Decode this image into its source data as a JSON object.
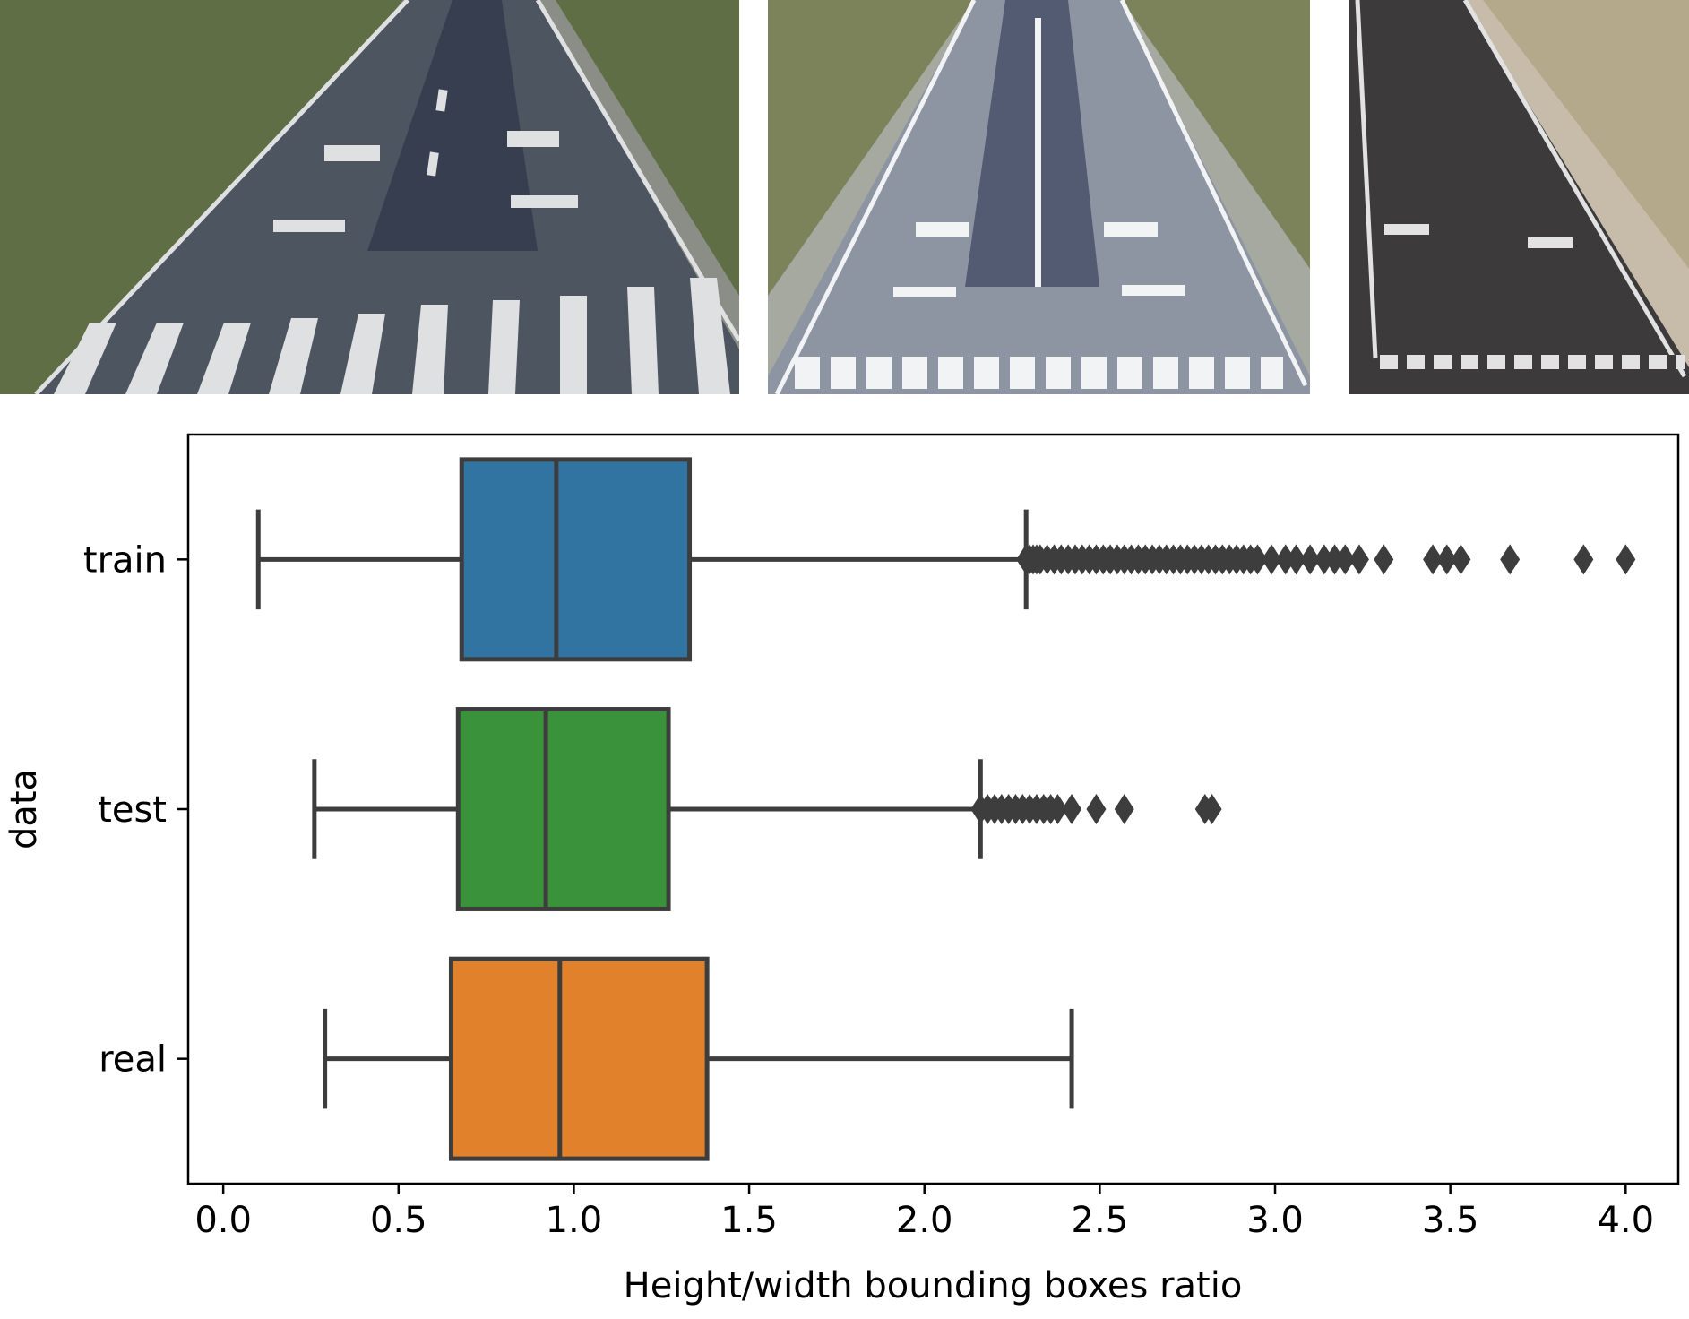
{
  "photos": [
    {
      "name": "runway-photo-1",
      "sky": "#8a8e86",
      "grass": "#5f6e45",
      "asphalt": "#4c5560",
      "paint": "#dfe0e2"
    },
    {
      "name": "runway-photo-2",
      "sky": "#a5a9a0",
      "grass": "#7c8259",
      "asphalt": "#8d95a3",
      "paint": "#f2f3f5"
    },
    {
      "name": "runway-photo-3",
      "sky": "#c6bca9",
      "grass": "#b5a98b",
      "asphalt": "#3c3a3b",
      "paint": "#e2e2e2"
    }
  ],
  "chart_data": {
    "type": "boxplot",
    "orientation": "horizontal",
    "xlabel": "Height/width bounding boxes ratio",
    "ylabel": "data",
    "xlim": [
      -0.1,
      4.15
    ],
    "xticks": [
      "0.0",
      "0.5",
      "1.0",
      "1.5",
      "2.0",
      "2.5",
      "3.0",
      "3.5",
      "4.0"
    ],
    "series": [
      {
        "name": "train",
        "color": "#3274a1",
        "whisker_low": 0.1,
        "q1": 0.68,
        "median": 0.95,
        "q3": 1.33,
        "whisker_high": 2.29,
        "outliers": [
          2.29,
          2.3,
          2.31,
          2.32,
          2.33,
          2.35,
          2.37,
          2.39,
          2.41,
          2.43,
          2.45,
          2.47,
          2.49,
          2.51,
          2.53,
          2.55,
          2.57,
          2.59,
          2.61,
          2.63,
          2.65,
          2.67,
          2.69,
          2.71,
          2.73,
          2.75,
          2.77,
          2.79,
          2.81,
          2.83,
          2.85,
          2.87,
          2.89,
          2.91,
          2.93,
          2.95,
          2.99,
          3.03,
          3.06,
          3.1,
          3.14,
          3.17,
          3.2,
          3.24,
          3.31,
          3.45,
          3.49,
          3.53,
          3.67,
          3.88,
          4.0
        ]
      },
      {
        "name": "test",
        "color": "#3a923a",
        "whisker_low": 0.26,
        "q1": 0.67,
        "median": 0.92,
        "q3": 1.27,
        "whisker_high": 2.16,
        "outliers": [
          2.16,
          2.18,
          2.2,
          2.22,
          2.24,
          2.26,
          2.28,
          2.3,
          2.32,
          2.34,
          2.36,
          2.38,
          2.42,
          2.49,
          2.57,
          2.8,
          2.82
        ]
      },
      {
        "name": "real",
        "color": "#e1812c",
        "whisker_low": 0.29,
        "q1": 0.65,
        "median": 0.96,
        "q3": 1.38,
        "whisker_high": 2.42,
        "outliers": []
      }
    ]
  }
}
